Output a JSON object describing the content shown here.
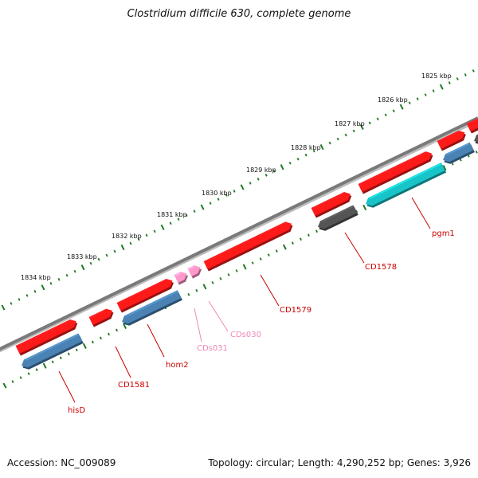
{
  "title": "Clostridium difficile 630, complete genome",
  "footer": {
    "accession": "Accession: NC_009089",
    "topology": "Topology: circular; Length: 4,290,252 bp; Genes: 3,926"
  },
  "ticks": [
    "1825 kbp",
    "1826 kbp",
    "1827 kbp",
    "1828 kbp",
    "1829 kbp",
    "1830 kbp",
    "1831 kbp",
    "1832 kbp",
    "1833 kbp",
    "1834 kbp"
  ],
  "genes": [
    {
      "name": "pgm1",
      "color": "#cc0000"
    },
    {
      "name": "CD1578",
      "color": "#cc0000"
    },
    {
      "name": "CD1579",
      "color": "#cc0000"
    },
    {
      "name": "CDs030",
      "color": "#ee88bb"
    },
    {
      "name": "CDs031",
      "color": "#ee88bb"
    },
    {
      "name": "hom2",
      "color": "#cc0000"
    },
    {
      "name": "CD1581",
      "color": "#cc0000"
    },
    {
      "name": "hisD",
      "color": "#cc0000"
    }
  ],
  "colors": {
    "cds": "#ff1a1a",
    "rna": "#ff99cc",
    "blue": "#4a82b4",
    "cyan": "#18c4c8",
    "grey": "#555555",
    "backbone": "#7a7a7a",
    "scale_dots": "#1e7a1e"
  }
}
